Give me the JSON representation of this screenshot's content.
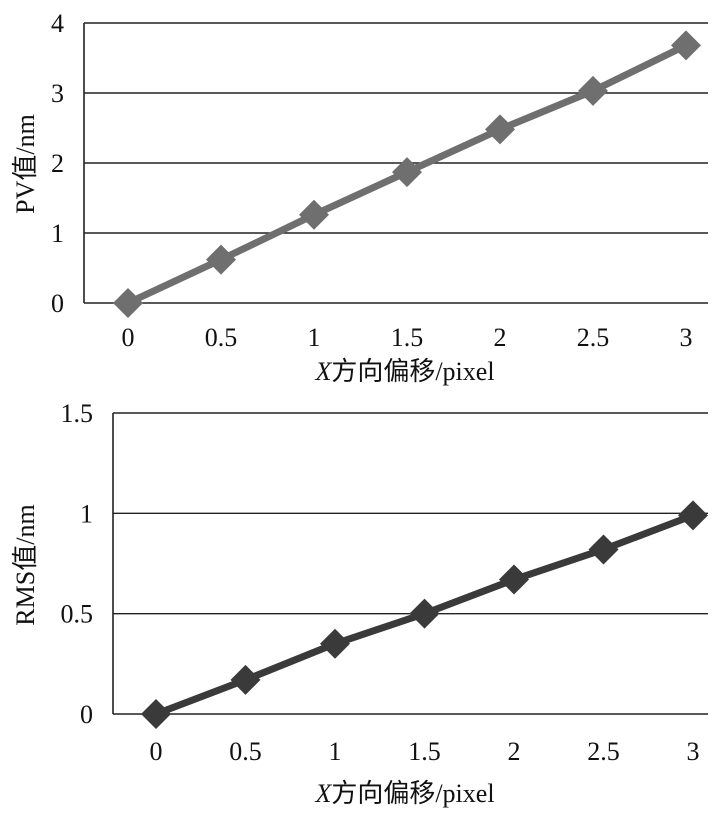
{
  "chart_data": [
    {
      "type": "line",
      "xlabel_prefix": "X",
      "xlabel_suffix": "方向偏移/pixel",
      "ylabel": "PV值/nm",
      "x": [
        0,
        0.5,
        1,
        1.5,
        2,
        2.5,
        3
      ],
      "x_tick_labels": [
        "0",
        "0.5",
        "1",
        "1.5",
        "2",
        "2.5",
        "3"
      ],
      "y_tick_labels": [
        "0",
        "1",
        "2",
        "3",
        "4"
      ],
      "ylim": [
        0,
        4
      ],
      "grid": true,
      "series": [
        {
          "values": [
            0,
            0.62,
            1.26,
            1.87,
            2.48,
            3.03,
            3.68
          ],
          "color": "#6f6f6f"
        }
      ]
    },
    {
      "type": "line",
      "xlabel_prefix": "X",
      "xlabel_suffix": "方向偏移/pixel",
      "ylabel": "RMS值/nm",
      "x": [
        0,
        0.5,
        1,
        1.5,
        2,
        2.5,
        3
      ],
      "x_tick_labels": [
        "0",
        "0.5",
        "1",
        "1.5",
        "2",
        "2.5",
        "3"
      ],
      "y_tick_labels": [
        "0",
        "0.5",
        "1",
        "1.5"
      ],
      "ylim": [
        0,
        1.5
      ],
      "grid": true,
      "series": [
        {
          "values": [
            0,
            0.17,
            0.35,
            0.5,
            0.67,
            0.82,
            0.99
          ],
          "color": "#3a3a3a"
        }
      ]
    }
  ]
}
